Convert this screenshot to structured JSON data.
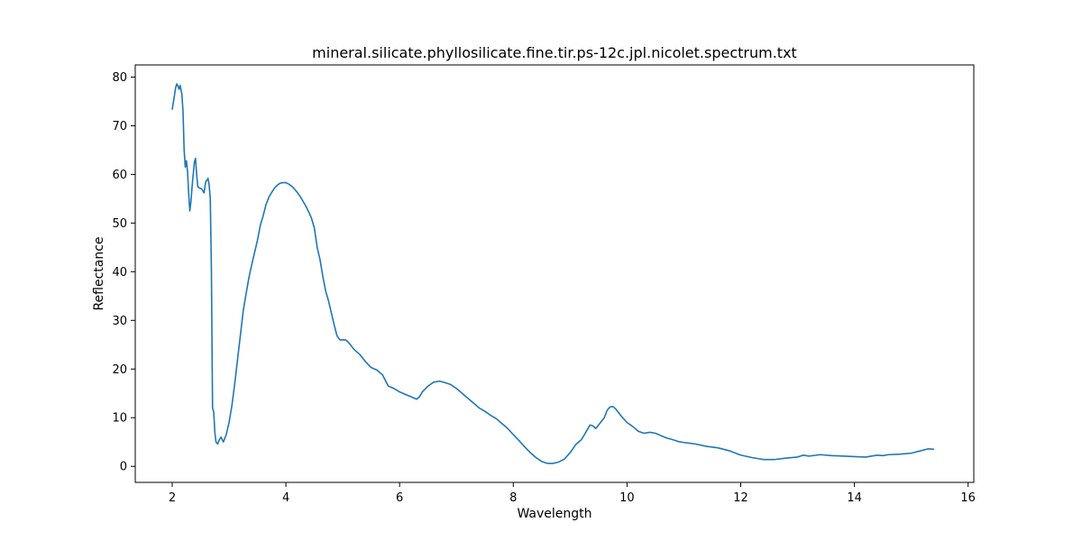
{
  "chart_data": {
    "type": "line",
    "title": "mineral.silicate.phyllosilicate.fine.tir.ps-12c.jpl.nicolet.spectrum.txt",
    "xlabel": "Wavelength",
    "ylabel": "Reflectance",
    "xlim": [
      1.35,
      16.1
    ],
    "ylim": [
      -3.3,
      82.5
    ],
    "xticks": [
      2,
      4,
      6,
      8,
      10,
      12,
      14,
      16
    ],
    "yticks": [
      0,
      10,
      20,
      30,
      40,
      50,
      60,
      70,
      80
    ],
    "grid": false,
    "legend": "none",
    "series": [
      {
        "color": "#1f77b4",
        "points": [
          [
            2.0,
            73.3
          ],
          [
            2.03,
            75.5
          ],
          [
            2.06,
            77.8
          ],
          [
            2.08,
            78.6
          ],
          [
            2.1,
            78.2
          ],
          [
            2.12,
            77.5
          ],
          [
            2.14,
            78.3
          ],
          [
            2.17,
            76.5
          ],
          [
            2.19,
            73.0
          ],
          [
            2.21,
            65.0
          ],
          [
            2.23,
            61.5
          ],
          [
            2.25,
            62.8
          ],
          [
            2.27,
            60.5
          ],
          [
            2.29,
            56.0
          ],
          [
            2.31,
            52.5
          ],
          [
            2.33,
            54.5
          ],
          [
            2.35,
            57.5
          ],
          [
            2.37,
            60.0
          ],
          [
            2.39,
            62.5
          ],
          [
            2.41,
            63.3
          ],
          [
            2.43,
            60.0
          ],
          [
            2.45,
            57.5
          ],
          [
            2.48,
            57.2
          ],
          [
            2.52,
            57.0
          ],
          [
            2.56,
            56.2
          ],
          [
            2.59,
            58.5
          ],
          [
            2.61,
            58.8
          ],
          [
            2.63,
            59.2
          ],
          [
            2.65,
            57.8
          ],
          [
            2.67,
            55.0
          ],
          [
            2.69,
            40.0
          ],
          [
            2.7,
            25.0
          ],
          [
            2.71,
            12.0
          ],
          [
            2.73,
            11.2
          ],
          [
            2.75,
            7.0
          ],
          [
            2.77,
            5.0
          ],
          [
            2.8,
            4.6
          ],
          [
            2.83,
            5.5
          ],
          [
            2.86,
            6.0
          ],
          [
            2.9,
            5.0
          ],
          [
            2.95,
            6.5
          ],
          [
            3.0,
            9.0
          ],
          [
            3.05,
            12.5
          ],
          [
            3.1,
            17.0
          ],
          [
            3.15,
            22.0
          ],
          [
            3.2,
            27.0
          ],
          [
            3.25,
            32.0
          ],
          [
            3.3,
            35.5
          ],
          [
            3.35,
            38.8
          ],
          [
            3.4,
            41.5
          ],
          [
            3.45,
            44.0
          ],
          [
            3.5,
            46.5
          ],
          [
            3.55,
            49.5
          ],
          [
            3.6,
            51.5
          ],
          [
            3.65,
            53.8
          ],
          [
            3.7,
            55.3
          ],
          [
            3.75,
            56.3
          ],
          [
            3.8,
            57.2
          ],
          [
            3.85,
            57.8
          ],
          [
            3.9,
            58.2
          ],
          [
            3.95,
            58.3
          ],
          [
            4.0,
            58.3
          ],
          [
            4.05,
            58.0
          ],
          [
            4.1,
            57.6
          ],
          [
            4.15,
            57.0
          ],
          [
            4.2,
            56.3
          ],
          [
            4.25,
            55.5
          ],
          [
            4.3,
            54.5
          ],
          [
            4.35,
            53.5
          ],
          [
            4.4,
            52.3
          ],
          [
            4.45,
            51.0
          ],
          [
            4.5,
            49.0
          ],
          [
            4.55,
            45.0
          ],
          [
            4.6,
            42.5
          ],
          [
            4.65,
            39.0
          ],
          [
            4.7,
            36.0
          ],
          [
            4.75,
            34.0
          ],
          [
            4.8,
            31.5
          ],
          [
            4.85,
            29.0
          ],
          [
            4.9,
            26.8
          ],
          [
            4.95,
            26.0
          ],
          [
            5.0,
            26.0
          ],
          [
            5.05,
            26.0
          ],
          [
            5.1,
            25.5
          ],
          [
            5.2,
            24.0
          ],
          [
            5.3,
            23.0
          ],
          [
            5.4,
            21.5
          ],
          [
            5.5,
            20.3
          ],
          [
            5.6,
            19.8
          ],
          [
            5.7,
            18.8
          ],
          [
            5.8,
            16.5
          ],
          [
            5.9,
            16.0
          ],
          [
            6.0,
            15.3
          ],
          [
            6.1,
            14.8
          ],
          [
            6.2,
            14.3
          ],
          [
            6.3,
            13.8
          ],
          [
            6.35,
            14.3
          ],
          [
            6.4,
            15.3
          ],
          [
            6.5,
            16.5
          ],
          [
            6.6,
            17.3
          ],
          [
            6.7,
            17.5
          ],
          [
            6.8,
            17.2
          ],
          [
            6.9,
            16.8
          ],
          [
            7.0,
            16.0
          ],
          [
            7.1,
            15.0
          ],
          [
            7.2,
            14.0
          ],
          [
            7.3,
            13.0
          ],
          [
            7.4,
            12.0
          ],
          [
            7.5,
            11.3
          ],
          [
            7.6,
            10.5
          ],
          [
            7.7,
            9.8
          ],
          [
            7.8,
            8.8
          ],
          [
            7.9,
            7.8
          ],
          [
            8.0,
            6.5
          ],
          [
            8.1,
            5.3
          ],
          [
            8.2,
            4.0
          ],
          [
            8.3,
            2.8
          ],
          [
            8.4,
            1.8
          ],
          [
            8.5,
            1.0
          ],
          [
            8.6,
            0.6
          ],
          [
            8.7,
            0.6
          ],
          [
            8.8,
            0.9
          ],
          [
            8.9,
            1.5
          ],
          [
            9.0,
            2.8
          ],
          [
            9.1,
            4.5
          ],
          [
            9.2,
            5.5
          ],
          [
            9.3,
            7.5
          ],
          [
            9.35,
            8.5
          ],
          [
            9.4,
            8.3
          ],
          [
            9.45,
            7.8
          ],
          [
            9.5,
            8.5
          ],
          [
            9.6,
            10.0
          ],
          [
            9.65,
            11.5
          ],
          [
            9.7,
            12.2
          ],
          [
            9.75,
            12.3
          ],
          [
            9.8,
            11.8
          ],
          [
            9.9,
            10.3
          ],
          [
            10.0,
            9.0
          ],
          [
            10.1,
            8.2
          ],
          [
            10.2,
            7.2
          ],
          [
            10.3,
            6.8
          ],
          [
            10.4,
            7.0
          ],
          [
            10.5,
            6.8
          ],
          [
            10.6,
            6.3
          ],
          [
            10.7,
            5.8
          ],
          [
            10.8,
            5.5
          ],
          [
            10.9,
            5.1
          ],
          [
            11.0,
            4.9
          ],
          [
            11.2,
            4.6
          ],
          [
            11.4,
            4.1
          ],
          [
            11.6,
            3.8
          ],
          [
            11.8,
            3.2
          ],
          [
            12.0,
            2.3
          ],
          [
            12.2,
            1.8
          ],
          [
            12.4,
            1.4
          ],
          [
            12.6,
            1.4
          ],
          [
            12.8,
            1.7
          ],
          [
            13.0,
            1.9
          ],
          [
            13.1,
            2.3
          ],
          [
            13.2,
            2.1
          ],
          [
            13.4,
            2.4
          ],
          [
            13.6,
            2.2
          ],
          [
            13.8,
            2.1
          ],
          [
            14.0,
            2.0
          ],
          [
            14.2,
            1.9
          ],
          [
            14.4,
            2.3
          ],
          [
            14.5,
            2.2
          ],
          [
            14.6,
            2.4
          ],
          [
            14.8,
            2.5
          ],
          [
            15.0,
            2.7
          ],
          [
            15.2,
            3.3
          ],
          [
            15.3,
            3.6
          ],
          [
            15.4,
            3.5
          ]
        ]
      }
    ]
  }
}
